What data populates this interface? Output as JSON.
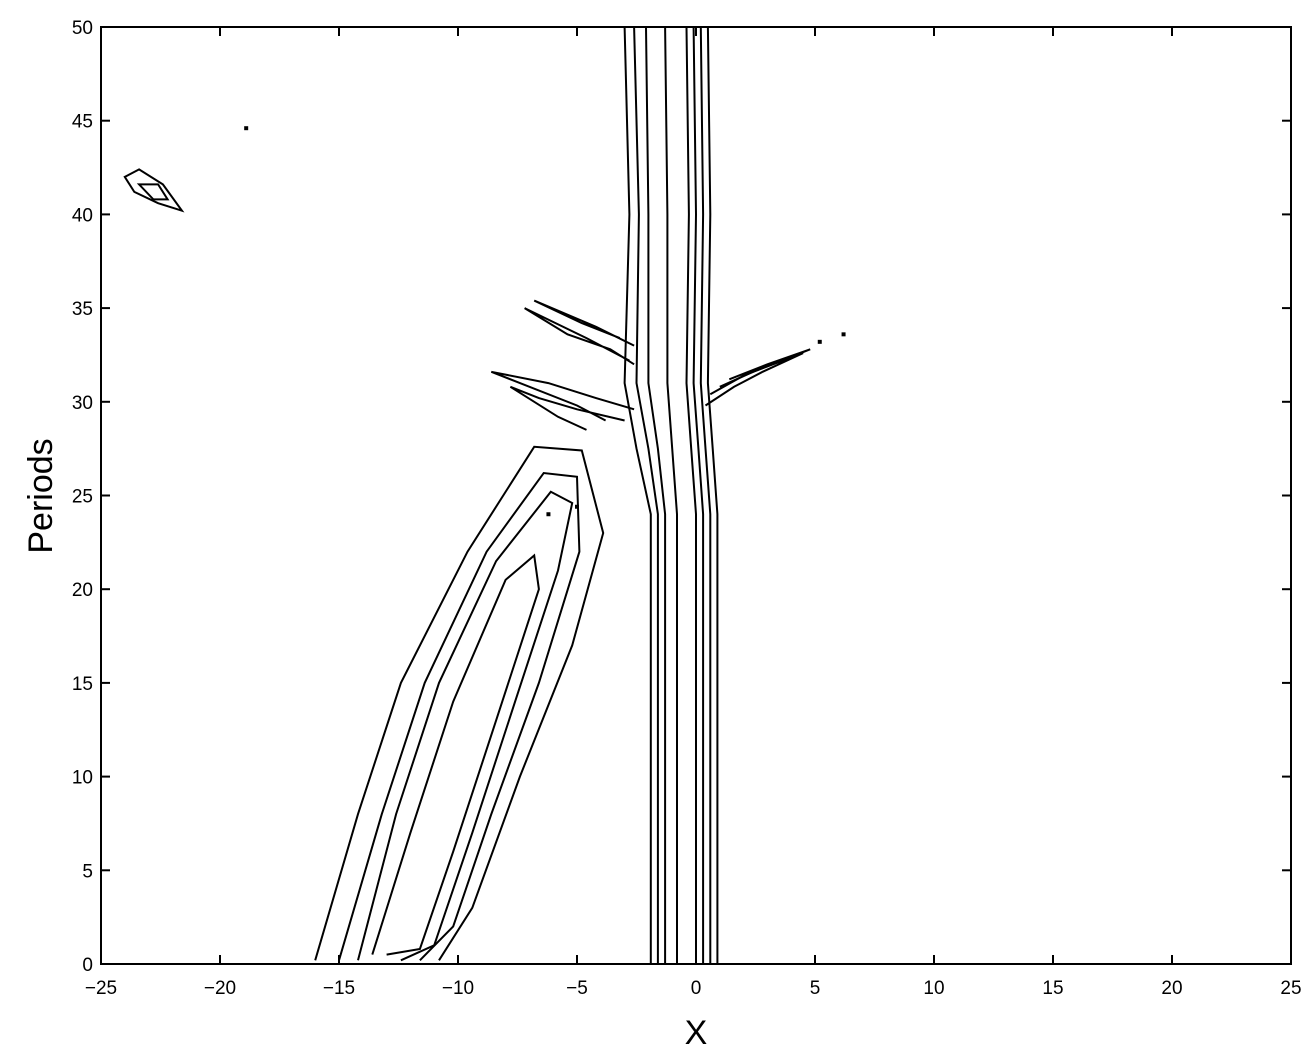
{
  "chart_data": {
    "type": "contour",
    "title": "",
    "xlabel": "X",
    "ylabel": "Periods",
    "xlim": [
      -25,
      25
    ],
    "ylim": [
      0,
      50
    ],
    "grid": false,
    "x_ticks": [
      "−25",
      "−20",
      "−15",
      "−10",
      "−5",
      "0",
      "5",
      "10",
      "15",
      "20",
      "25"
    ],
    "y_ticks": [
      "0",
      "5",
      "10",
      "15",
      "20",
      "25",
      "30",
      "35",
      "40",
      "45",
      "50"
    ],
    "features": [
      {
        "name": "diagonal-band",
        "levels": [
          [
            [
              -16.0,
              0.2
            ],
            [
              -14.2,
              8.0
            ],
            [
              -12.4,
              15.0
            ],
            [
              -9.6,
              22.0
            ],
            [
              -6.8,
              27.6
            ],
            [
              -4.8,
              27.4
            ],
            [
              -3.9,
              23.0
            ],
            [
              -5.2,
              17.0
            ],
            [
              -7.4,
              10.0
            ],
            [
              -9.4,
              3.0
            ],
            [
              -10.8,
              0.2
            ]
          ],
          [
            [
              -15.0,
              0.2
            ],
            [
              -13.2,
              8.0
            ],
            [
              -11.4,
              15.0
            ],
            [
              -8.8,
              22.0
            ],
            [
              -6.4,
              26.2
            ],
            [
              -5.0,
              26.0
            ],
            [
              -4.9,
              22.0
            ],
            [
              -6.6,
              15.0
            ],
            [
              -8.6,
              8.0
            ],
            [
              -10.2,
              2.0
            ],
            [
              -11.6,
              0.2
            ]
          ],
          [
            [
              -14.2,
              0.2
            ],
            [
              -12.6,
              8.0
            ],
            [
              -10.8,
              15.0
            ],
            [
              -8.4,
              21.5
            ],
            [
              -6.1,
              25.2
            ],
            [
              -5.2,
              24.6
            ],
            [
              -5.8,
              21.0
            ],
            [
              -7.6,
              14.0
            ],
            [
              -9.4,
              7.0
            ],
            [
              -11.0,
              1.0
            ],
            [
              -12.4,
              0.2
            ]
          ],
          [
            [
              -13.6,
              0.5
            ],
            [
              -12.0,
              7.0
            ],
            [
              -10.2,
              14.0
            ],
            [
              -8.0,
              20.5
            ],
            [
              -6.8,
              21.8
            ],
            [
              -6.6,
              20.0
            ],
            [
              -8.4,
              13.0
            ],
            [
              -10.2,
              6.0
            ],
            [
              -11.6,
              0.8
            ],
            [
              -13.0,
              0.5
            ]
          ]
        ]
      },
      {
        "name": "vertical-band",
        "levels": [
          [
            [
              -1.9,
              0.0
            ],
            [
              -1.9,
              24.0
            ],
            [
              -2.5,
              27.5
            ],
            [
              -3.0,
              31.0
            ],
            [
              -2.8,
              40.0
            ],
            [
              -3.0,
              50.0
            ]
          ],
          [
            [
              -1.6,
              0.0
            ],
            [
              -1.6,
              24.0
            ],
            [
              -2.0,
              27.5
            ],
            [
              -2.5,
              31.0
            ],
            [
              -2.4,
              40.0
            ],
            [
              -2.6,
              50.0
            ]
          ],
          [
            [
              -1.3,
              0.0
            ],
            [
              -1.3,
              24.0
            ],
            [
              -1.6,
              27.5
            ],
            [
              -2.0,
              31.0
            ],
            [
              -2.0,
              40.0
            ],
            [
              -2.1,
              50.0
            ]
          ],
          [
            [
              -0.8,
              0.0
            ],
            [
              -0.8,
              24.0
            ],
            [
              -1.0,
              27.5
            ],
            [
              -1.2,
              31.0
            ],
            [
              -1.2,
              40.0
            ],
            [
              -1.3,
              50.0
            ]
          ],
          [
            [
              0.0,
              0.0
            ],
            [
              0.0,
              24.0
            ],
            [
              -0.2,
              27.5
            ],
            [
              -0.4,
              31.0
            ],
            [
              -0.3,
              40.0
            ],
            [
              -0.4,
              50.0
            ]
          ],
          [
            [
              0.3,
              0.0
            ],
            [
              0.3,
              24.0
            ],
            [
              0.1,
              27.5
            ],
            [
              -0.1,
              31.0
            ],
            [
              0.0,
              40.0
            ],
            [
              -0.1,
              50.0
            ]
          ],
          [
            [
              0.6,
              0.0
            ],
            [
              0.6,
              24.0
            ],
            [
              0.4,
              27.5
            ],
            [
              0.2,
              31.0
            ],
            [
              0.3,
              40.0
            ],
            [
              0.2,
              50.0
            ]
          ],
          [
            [
              0.9,
              0.0
            ],
            [
              0.9,
              24.0
            ],
            [
              0.7,
              27.5
            ],
            [
              0.5,
              31.0
            ],
            [
              0.6,
              40.0
            ],
            [
              0.5,
              50.0
            ]
          ]
        ]
      },
      {
        "name": "left-wing-lower",
        "levels": [
          [
            [
              -4.6,
              28.5
            ],
            [
              -5.8,
              29.2
            ],
            [
              -7.8,
              30.8
            ],
            [
              -6.6,
              30.2
            ],
            [
              -5.0,
              29.6
            ],
            [
              -3.0,
              29.0
            ]
          ],
          [
            [
              -3.8,
              29.0
            ],
            [
              -5.0,
              29.8
            ],
            [
              -8.6,
              31.6
            ],
            [
              -6.2,
              31.0
            ],
            [
              -4.2,
              30.2
            ],
            [
              -2.6,
              29.6
            ]
          ]
        ]
      },
      {
        "name": "left-wing-upper",
        "levels": [
          [
            [
              -2.8,
              32.2
            ],
            [
              -4.6,
              33.4
            ],
            [
              -7.2,
              35.0
            ],
            [
              -5.4,
              33.6
            ],
            [
              -3.6,
              32.8
            ],
            [
              -2.6,
              32.0
            ]
          ],
          [
            [
              -2.6,
              33.0
            ],
            [
              -4.2,
              34.0
            ],
            [
              -6.8,
              35.4
            ],
            [
              -4.8,
              34.2
            ],
            [
              -3.2,
              33.4
            ]
          ]
        ]
      },
      {
        "name": "right-wing",
        "levels": [
          [
            [
              0.4,
              29.8
            ],
            [
              1.6,
              30.8
            ],
            [
              2.8,
              31.6
            ],
            [
              4.5,
              32.6
            ],
            [
              2.4,
              31.6
            ],
            [
              1.0,
              30.8
            ]
          ],
          [
            [
              0.6,
              30.4
            ],
            [
              2.0,
              31.4
            ],
            [
              3.6,
              32.2
            ],
            [
              4.8,
              32.8
            ],
            [
              3.0,
              32.0
            ],
            [
              1.4,
              31.2
            ]
          ]
        ]
      },
      {
        "name": "upper-left-ellipse",
        "closed": true,
        "levels": [
          [
            [
              -24.0,
              42.0
            ],
            [
              -23.4,
              42.4
            ],
            [
              -22.4,
              41.6
            ],
            [
              -21.6,
              40.2
            ],
            [
              -22.6,
              40.6
            ],
            [
              -23.6,
              41.2
            ]
          ],
          [
            [
              -23.4,
              41.6
            ],
            [
              -22.6,
              41.6
            ],
            [
              -22.2,
              40.8
            ],
            [
              -22.8,
              40.8
            ]
          ]
        ]
      }
    ],
    "specks": [
      [
        -18.9,
        44.6
      ],
      [
        -5.0,
        24.4
      ],
      [
        -6.2,
        24.0
      ],
      [
        5.2,
        33.2
      ],
      [
        6.2,
        33.6
      ]
    ]
  }
}
